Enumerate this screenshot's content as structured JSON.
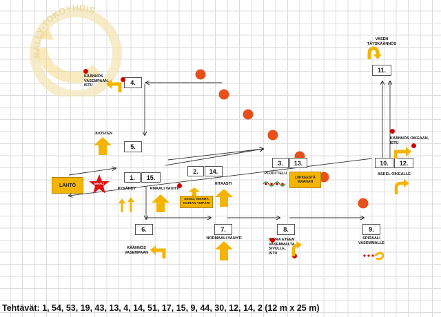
{
  "logo": {
    "text": "RALLY-TOKOYHDIS"
  },
  "stations": [
    {
      "id": "s1",
      "number": "1."
    },
    {
      "id": "s15",
      "number": "15."
    },
    {
      "id": "s2",
      "number": "2."
    },
    {
      "id": "s14",
      "number": "14."
    },
    {
      "id": "s3",
      "number": "3."
    },
    {
      "id": "s13",
      "number": "13."
    },
    {
      "id": "s4",
      "number": "4."
    },
    {
      "id": "s5",
      "number": "5."
    },
    {
      "id": "s6",
      "number": "6."
    },
    {
      "id": "s7",
      "number": "7."
    },
    {
      "id": "s8",
      "number": "8."
    },
    {
      "id": "s9",
      "number": "9."
    },
    {
      "id": "s10",
      "number": "10."
    },
    {
      "id": "s12",
      "number": "12."
    },
    {
      "id": "s11",
      "number": "11."
    }
  ],
  "labels": {
    "start": "LÄHTÖ",
    "finish": "MAALI",
    "vasen_taysi": "VASEN\nTÄYSKÄÄNNÖS",
    "kaannos_vasempaan_istu": "KÄÄNNÖS\nVASEMPAAN,\nISTU",
    "juosten": "JUOSTEN",
    "pysahdy": "PYSÄHDY",
    "rmaali_vauhti": "RMAALI VAUHTI",
    "seiso_kierra": "SEISO, KIERRÄ\nKOIRAN YMPÄRI",
    "hitaasti": "HITAASTI",
    "pujottelu": "PUJOTTELU",
    "liikkeesta_maahan": "LIIKKEESTÄ\nMAAHAN",
    "kaannos_oikeaan_istu": "KÄÄNNÖS OIKEAAN,\nISTU",
    "askel_oikealle": "ASKEL OIKEALLE",
    "kaannos_vasempaan": "KÄÄNNÖS\nVASEMPAAN",
    "normaali_vauhti": "NORMAALI VAUHTI",
    "koira_eteen": "KOIRA ETEEN\nVASEMMALTA\nSIVULLE,\nISTU",
    "spiraali": "SPIRAALI\nVASEMMALLE"
  },
  "footer": "Tehtävät: 1, 54, 53, 19, 43, 13, 4, 14, 51, 17, 15, 9, 44, 30, 12, 14, 2  (12 m x 25 m)",
  "colors": {
    "sign_yellow": "#f4b400",
    "cone_orange": "#e8501a",
    "dot_red": "#d40000",
    "star_red": "#e01010",
    "grid": "#dcdcdc"
  }
}
